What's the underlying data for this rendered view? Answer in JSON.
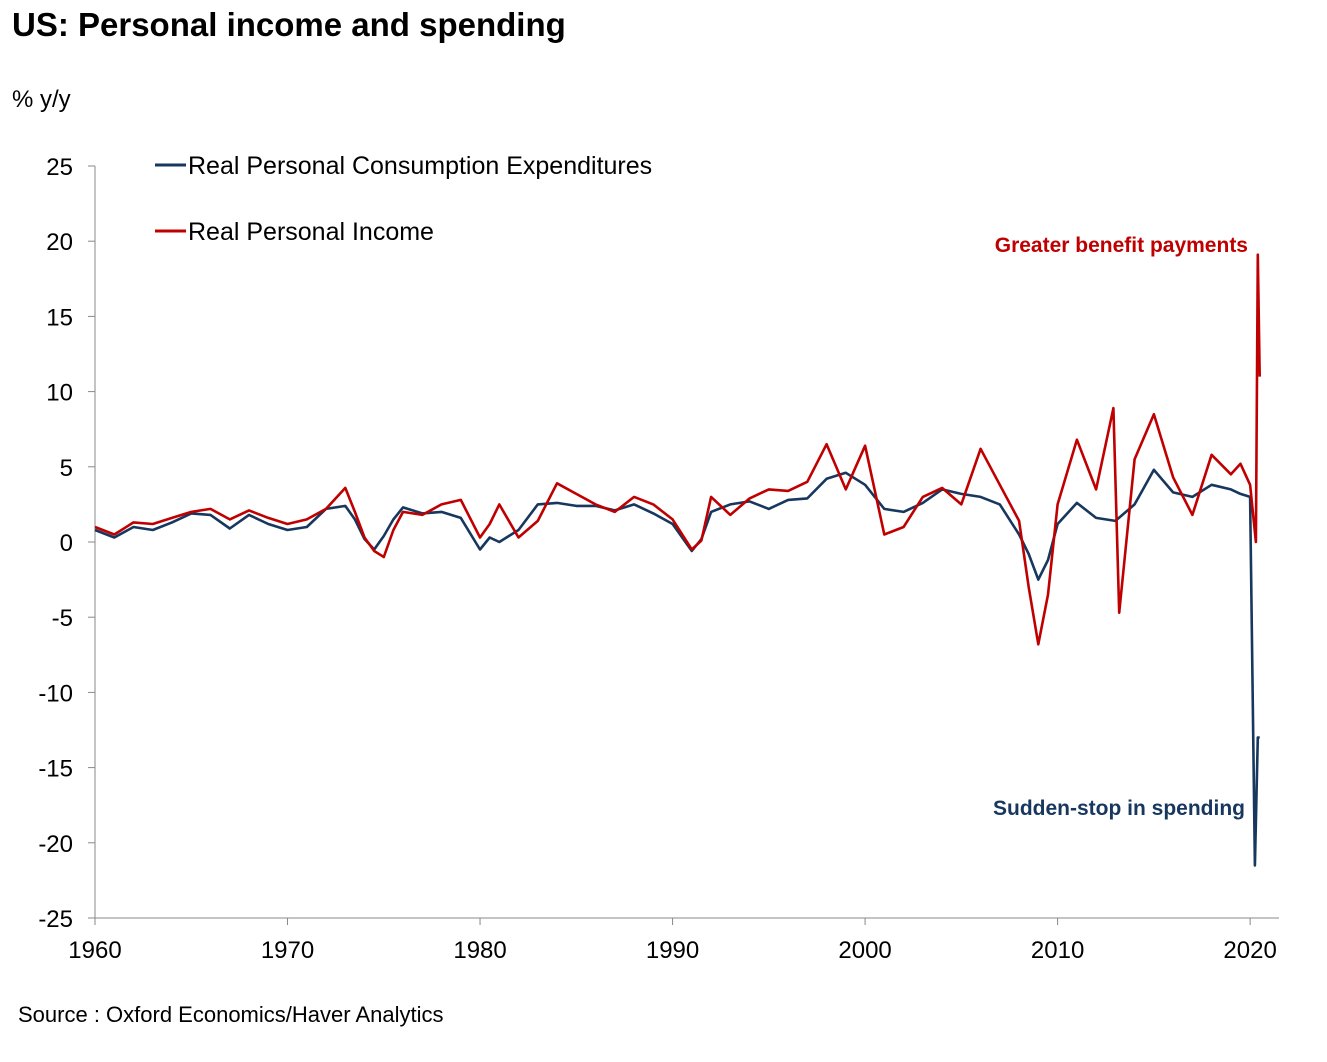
{
  "title": "US: Personal income and spending",
  "unit_label": "% y/y",
  "source": "Source : Oxford Economics/Haver Analytics",
  "chart_data": {
    "type": "line",
    "xlim": [
      1960,
      2021.5
    ],
    "ylim": [
      -25,
      25
    ],
    "yticks": [
      25,
      20,
      15,
      10,
      5,
      0,
      -5,
      -10,
      -15,
      -20,
      -25
    ],
    "xticks": [
      1960,
      1970,
      1980,
      1990,
      2000,
      2010,
      2020
    ],
    "grid": false,
    "legend_position": "top-left",
    "series": [
      {
        "name": "Real Personal Consumption Expenditures",
        "color": "#17375e",
        "x": [
          1960,
          1961,
          1962,
          1963,
          1964,
          1965,
          1966,
          1967,
          1968,
          1969,
          1970,
          1971,
          1972,
          1973,
          1973.5,
          1974,
          1974.5,
          1975,
          1975.5,
          1976,
          1977,
          1978,
          1979,
          1980,
          1980.5,
          1981,
          1982,
          1983,
          1984,
          1985,
          1986,
          1987,
          1988,
          1989,
          1990,
          1991,
          1991.5,
          1992,
          1993,
          1994,
          1995,
          1996,
          1997,
          1998,
          1999,
          2000,
          2001,
          2002,
          2003,
          2004,
          2005,
          2006,
          2007,
          2008,
          2008.5,
          2009,
          2009.5,
          2010,
          2011,
          2012,
          2013,
          2014,
          2015,
          2016,
          2017,
          2018,
          2019,
          2019.5,
          2020,
          2020.25,
          2020.4,
          2020.5
        ],
        "y": [
          0.8,
          0.3,
          1.0,
          0.8,
          1.3,
          1.9,
          1.8,
          0.9,
          1.8,
          1.2,
          0.8,
          1.0,
          2.2,
          2.4,
          1.5,
          0.2,
          -0.5,
          0.4,
          1.5,
          2.3,
          1.9,
          2.0,
          1.6,
          -0.5,
          0.3,
          0.0,
          0.8,
          2.5,
          2.6,
          2.4,
          2.4,
          2.1,
          2.5,
          1.9,
          1.2,
          -0.6,
          0.2,
          2.0,
          2.5,
          2.7,
          2.2,
          2.8,
          2.9,
          4.2,
          4.6,
          3.8,
          2.2,
          2.0,
          2.6,
          3.5,
          3.2,
          3.0,
          2.5,
          0.5,
          -0.8,
          -2.5,
          -1.2,
          1.2,
          2.6,
          1.6,
          1.4,
          2.5,
          4.8,
          3.3,
          3.0,
          3.8,
          3.5,
          3.2,
          3.0,
          -21.5,
          -13.0,
          -13.0
        ]
      },
      {
        "name": "Real Personal Income",
        "color": "#c00000",
        "x": [
          1960,
          1961,
          1962,
          1963,
          1964,
          1965,
          1966,
          1967,
          1968,
          1969,
          1970,
          1971,
          1972,
          1973,
          1973.5,
          1974,
          1974.5,
          1975,
          1975.5,
          1976,
          1977,
          1978,
          1979,
          1980,
          1980.5,
          1981,
          1982,
          1983,
          1984,
          1985,
          1986,
          1987,
          1988,
          1989,
          1990,
          1991,
          1991.5,
          1992,
          1993,
          1994,
          1995,
          1996,
          1997,
          1998,
          1999,
          2000,
          2001,
          2002,
          2003,
          2004,
          2005,
          2006,
          2007,
          2008,
          2008.5,
          2009,
          2009.5,
          2010,
          2011,
          2012,
          2012.9,
          2013.2,
          2014,
          2015,
          2016,
          2017,
          2018,
          2019,
          2019.5,
          2020,
          2020.3,
          2020.4,
          2020.5
        ],
        "y": [
          1.0,
          0.5,
          1.3,
          1.2,
          1.6,
          2.0,
          2.2,
          1.5,
          2.1,
          1.6,
          1.2,
          1.5,
          2.2,
          3.6,
          2.0,
          0.3,
          -0.6,
          -1.0,
          0.8,
          2.0,
          1.8,
          2.5,
          2.8,
          0.3,
          1.2,
          2.5,
          0.3,
          1.4,
          3.9,
          3.2,
          2.5,
          2.0,
          3.0,
          2.5,
          1.5,
          -0.5,
          0.1,
          3.0,
          1.8,
          2.9,
          3.5,
          3.4,
          4.0,
          6.5,
          3.5,
          6.4,
          0.5,
          1.0,
          3.0,
          3.6,
          2.5,
          6.2,
          3.8,
          1.4,
          -3.0,
          -6.8,
          -3.5,
          2.5,
          6.8,
          3.5,
          8.9,
          -4.7,
          5.5,
          8.5,
          4.3,
          1.8,
          5.8,
          4.5,
          5.2,
          3.8,
          0.0,
          19.1,
          11.0
        ]
      }
    ],
    "annotations": [
      {
        "text": "Greater benefit payments",
        "color": "#c00000"
      },
      {
        "text": "Sudden-stop in spending",
        "color": "#17375e"
      }
    ]
  }
}
